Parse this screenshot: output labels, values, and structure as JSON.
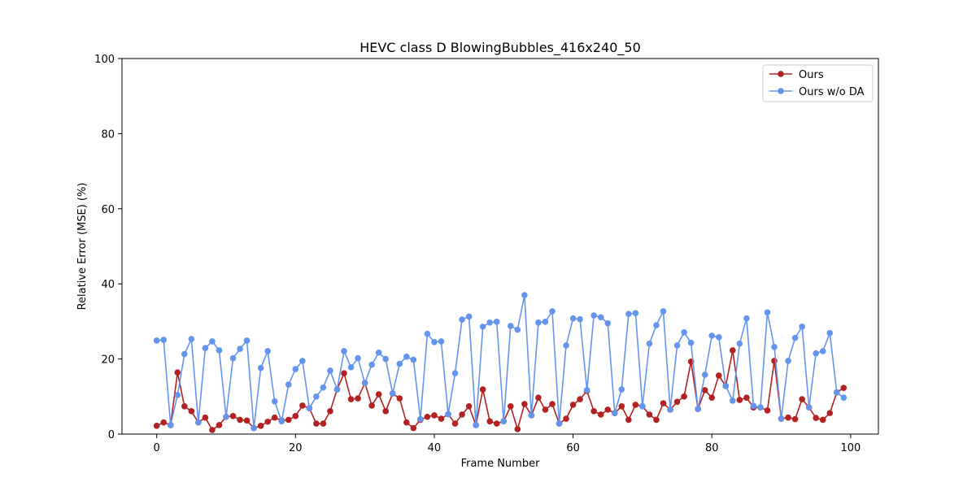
{
  "chart_data": {
    "type": "line",
    "title": "HEVC class D BlowingBubbles_416x240_50",
    "xlabel": "Frame Number",
    "ylabel": "Relative Error (MSE) (%)",
    "xlim": [
      -5,
      104
    ],
    "ylim": [
      0,
      100
    ],
    "xticks": [
      0,
      20,
      40,
      60,
      80,
      100
    ],
    "yticks": [
      0,
      20,
      40,
      60,
      80,
      100
    ],
    "grid": false,
    "legend_position": "top-right",
    "x": [
      0,
      1,
      2,
      3,
      4,
      5,
      6,
      7,
      8,
      9,
      10,
      11,
      12,
      13,
      14,
      15,
      16,
      17,
      18,
      19,
      20,
      21,
      22,
      23,
      24,
      25,
      26,
      27,
      28,
      29,
      30,
      31,
      32,
      33,
      34,
      35,
      36,
      37,
      38,
      39,
      40,
      41,
      42,
      43,
      44,
      45,
      46,
      47,
      48,
      49,
      50,
      51,
      52,
      53,
      54,
      55,
      56,
      57,
      58,
      59,
      60,
      61,
      62,
      63,
      64,
      65,
      66,
      67,
      68,
      69,
      70,
      71,
      72,
      73,
      74,
      75,
      76,
      77,
      78,
      79,
      80,
      81,
      82,
      83,
      84,
      85,
      86,
      87,
      88,
      89,
      90,
      91,
      92,
      93,
      94,
      95,
      96,
      97,
      98,
      99
    ],
    "series": [
      {
        "name": "Ours",
        "color": "#b22222",
        "values": [
          2.2,
          3.1,
          2.4,
          16.4,
          7.4,
          6.1,
          3.1,
          4.4,
          1.1,
          2.4,
          4.6,
          4.8,
          3.8,
          3.6,
          1.6,
          2.2,
          3.3,
          4.4,
          3.6,
          3.8,
          4.8,
          7.6,
          6.9,
          2.8,
          2.8,
          6.1,
          11.9,
          16.2,
          9.3,
          9.5,
          13.6,
          7.6,
          10.6,
          6.1,
          10.8,
          9.5,
          3.1,
          1.6,
          3.8,
          4.6,
          5.0,
          4.1,
          5.3,
          2.8,
          5.2,
          7.4,
          2.4,
          11.9,
          3.4,
          2.8,
          3.4,
          7.4,
          1.3,
          8.0,
          5.0,
          9.7,
          6.5,
          8.0,
          2.8,
          4.1,
          7.8,
          9.3,
          11.5,
          6.1,
          5.2,
          6.5,
          5.6,
          7.4,
          3.8,
          7.8,
          7.4,
          5.2,
          3.8,
          8.2,
          6.5,
          8.6,
          10.0,
          19.3,
          6.7,
          11.7,
          9.7,
          15.6,
          12.8,
          22.3,
          9.1,
          9.7,
          7.1,
          7.1,
          6.3,
          19.5,
          4.1,
          4.4,
          4.0,
          9.3,
          7.1,
          4.3,
          3.8,
          5.6,
          11.1,
          12.3
        ]
      },
      {
        "name": "Ours w/o DA",
        "color": "#6495ed",
        "values": [
          24.9,
          25.1,
          2.4,
          10.4,
          21.3,
          25.3,
          3.1,
          22.9,
          24.7,
          22.3,
          4.6,
          20.2,
          22.7,
          24.9,
          1.6,
          17.6,
          22.1,
          8.7,
          3.4,
          13.2,
          17.3,
          19.5,
          6.9,
          10.0,
          12.4,
          16.9,
          11.9,
          22.1,
          17.8,
          20.2,
          13.6,
          18.5,
          21.7,
          20.0,
          10.8,
          18.7,
          20.6,
          19.8,
          4.0,
          26.7,
          24.5,
          24.7,
          5.3,
          16.2,
          30.5,
          31.3,
          2.4,
          28.6,
          29.7,
          29.9,
          3.4,
          28.8,
          27.8,
          37.0,
          5.0,
          29.7,
          29.9,
          32.7,
          2.8,
          23.6,
          30.8,
          30.6,
          11.7,
          31.6,
          31.1,
          29.5,
          5.6,
          11.9,
          32.0,
          32.2,
          7.4,
          24.1,
          29.0,
          32.7,
          6.5,
          23.6,
          27.1,
          24.3,
          6.7,
          15.8,
          26.2,
          25.8,
          12.8,
          8.9,
          24.1,
          30.8,
          7.5,
          7.1,
          32.4,
          23.2,
          4.1,
          19.5,
          25.6,
          28.6,
          7.1,
          21.5,
          22.1,
          26.9,
          11.1,
          9.7
        ]
      }
    ]
  }
}
